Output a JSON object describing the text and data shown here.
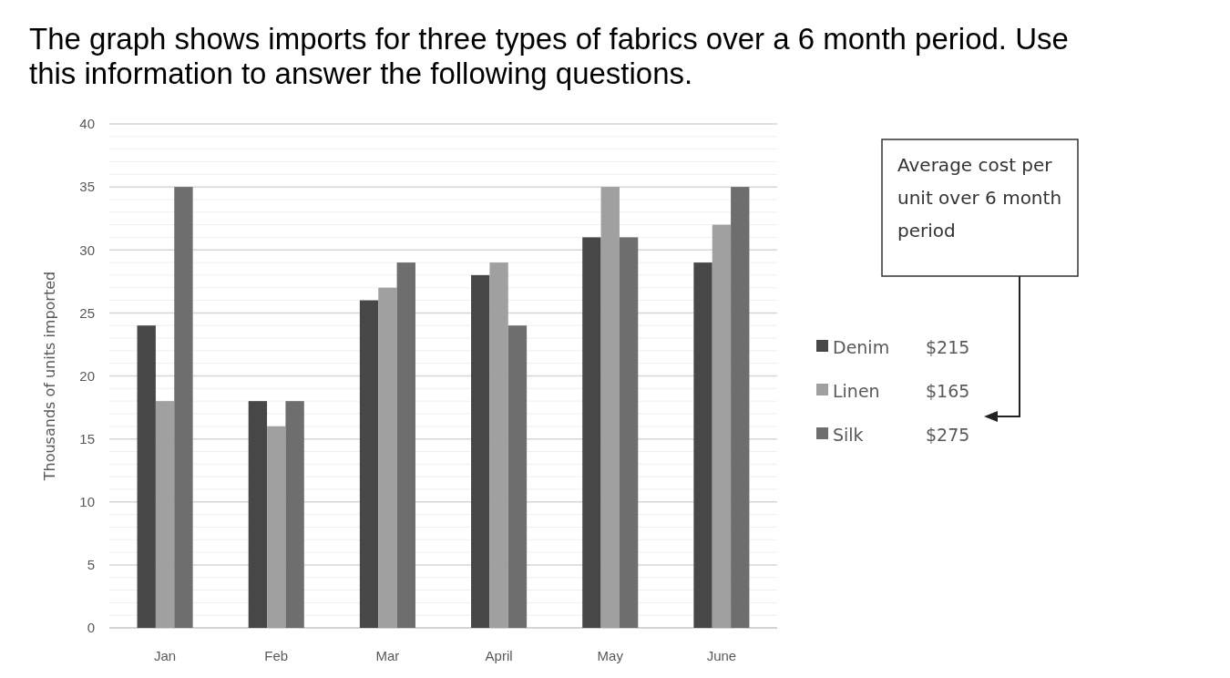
{
  "chart_data": {
    "type": "bar",
    "title": "The graph shows imports for three types of fabrics over a 6 month period. Use this information to answer the following questions.",
    "ylabel": "Thousands of units imported",
    "categories": [
      "Jan",
      "Feb",
      "Mar",
      "April",
      "May",
      "June"
    ],
    "series": [
      {
        "name": "Denim",
        "color": "#474747",
        "values": [
          24,
          18,
          26,
          28,
          31,
          29
        ]
      },
      {
        "name": "Linen",
        "color": "#a0a0a0",
        "values": [
          18,
          16,
          27,
          29,
          35,
          32
        ]
      },
      {
        "name": "Silk",
        "color": "#6e6e6e",
        "values": [
          35,
          18,
          29,
          24,
          31,
          35
        ]
      }
    ],
    "ylim": [
      0,
      40
    ],
    "yticks": [
      0,
      {
        "value": 1,
        "label": null
      },
      {
        "value": 2,
        "label": null
      },
      {
        "value": 3,
        "label": null
      },
      {
        "value": 4,
        "label": null
      },
      5,
      {
        "value": 6,
        "label": null
      },
      {
        "value": 7,
        "label": null
      },
      {
        "value": 8,
        "label": null
      },
      {
        "value": 9,
        "label": null
      },
      10,
      {
        "value": 11,
        "label": null
      },
      {
        "value": 12,
        "label": null
      },
      {
        "value": 13,
        "label": null
      },
      {
        "value": 14,
        "label": null
      },
      15,
      {
        "value": 16,
        "label": null
      },
      {
        "value": 17,
        "label": null
      },
      {
        "value": 18,
        "label": null
      },
      {
        "value": 19,
        "label": null
      },
      20,
      {
        "value": 21,
        "label": null
      },
      {
        "value": 22,
        "label": null
      },
      {
        "value": 23,
        "label": null
      },
      {
        "value": 24,
        "label": null
      },
      25,
      {
        "value": 26,
        "label": null
      },
      {
        "value": 27,
        "label": null
      },
      {
        "value": 28,
        "label": null
      },
      {
        "value": 29,
        "label": null
      },
      30,
      {
        "value": 31,
        "label": null
      },
      {
        "value": 32,
        "label": null
      },
      {
        "value": 33,
        "label": null
      },
      {
        "value": 34,
        "label": null
      },
      35,
      {
        "value": 36,
        "label": null
      },
      {
        "value": 37,
        "label": null
      },
      {
        "value": 38,
        "label": null
      },
      {
        "value": 39,
        "label": null
      },
      40
    ],
    "grid": "y",
    "legend": "right",
    "annotations": [
      "Average cost per unit over 6 month period",
      "$215",
      "$165",
      "$275"
    ]
  }
}
